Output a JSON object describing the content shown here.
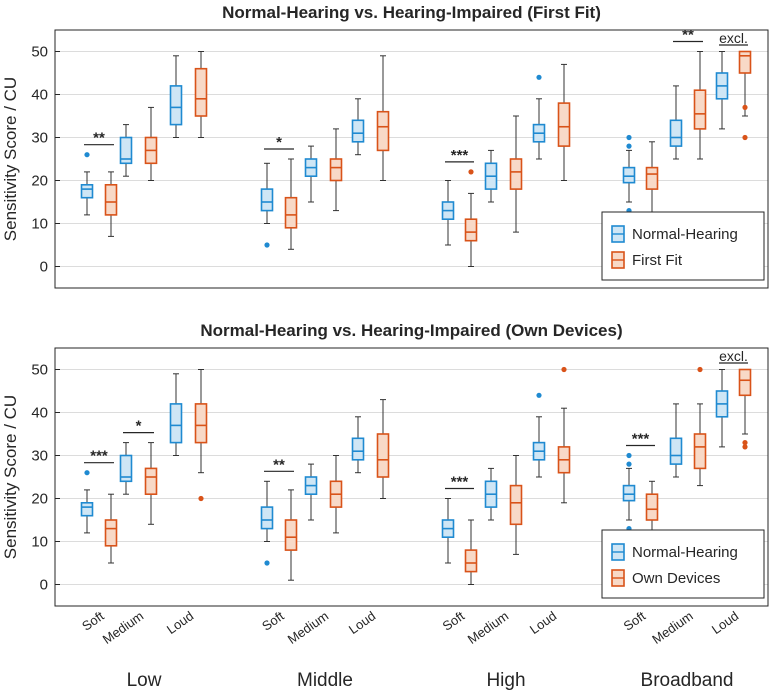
{
  "colors": {
    "nh_stroke": "#1f8ad1",
    "nh_fill": "#cfe6f5",
    "hi_stroke": "#d95319",
    "hi_fill": "#f8d9c7",
    "whisker": "#333333",
    "grid": "#dcdcdc",
    "frame": "#262626"
  },
  "chart_data": [
    {
      "type": "box",
      "title": "Normal-Hearing vs. Hearing-Impaired (First Fit)",
      "ylabel": "Sensitivity Score / CU",
      "ylim": [
        -5,
        55
      ],
      "yticks": [
        0,
        10,
        20,
        30,
        40,
        50
      ],
      "grid": true,
      "legend": {
        "placement": "bottom-right",
        "entries": [
          "Normal-Hearing",
          "First Fit"
        ]
      },
      "bands": [
        "Low",
        "Middle",
        "High",
        "Broadband"
      ],
      "levels": [
        "Soft",
        "Medium",
        "Loud"
      ],
      "series": [
        {
          "name": "Normal-Hearing",
          "boxes": [
            {
              "band": "Low",
              "level": "Soft",
              "min": 12,
              "q1": 16,
              "median": 18,
              "q3": 19,
              "max": 22,
              "outliers": [
                26
              ]
            },
            {
              "band": "Low",
              "level": "Medium",
              "min": 21,
              "q1": 24,
              "median": 25,
              "q3": 30,
              "max": 33,
              "outliers": []
            },
            {
              "band": "Low",
              "level": "Loud",
              "min": 30,
              "q1": 33,
              "median": 37,
              "q3": 42,
              "max": 49,
              "outliers": []
            },
            {
              "band": "Middle",
              "level": "Soft",
              "min": 10,
              "q1": 13,
              "median": 15,
              "q3": 18,
              "max": 24,
              "outliers": [
                5
              ]
            },
            {
              "band": "Middle",
              "level": "Medium",
              "min": 15,
              "q1": 21,
              "median": 23,
              "q3": 25,
              "max": 28,
              "outliers": []
            },
            {
              "band": "Middle",
              "level": "Loud",
              "min": 26,
              "q1": 29,
              "median": 31,
              "q3": 34,
              "max": 39,
              "outliers": []
            },
            {
              "band": "High",
              "level": "Soft",
              "min": 5,
              "q1": 11,
              "median": 13,
              "q3": 15,
              "max": 20,
              "outliers": []
            },
            {
              "band": "High",
              "level": "Medium",
              "min": 15,
              "q1": 18,
              "median": 21,
              "q3": 24,
              "max": 27,
              "outliers": []
            },
            {
              "band": "High",
              "level": "Loud",
              "min": 25,
              "q1": 29,
              "median": 31,
              "q3": 33,
              "max": 39,
              "outliers": [
                44
              ]
            },
            {
              "band": "Broadband",
              "level": "Soft",
              "min": 15,
              "q1": 19.5,
              "median": 21,
              "q3": 23,
              "max": 27,
              "outliers": [
                13,
                28,
                30
              ]
            },
            {
              "band": "Broadband",
              "level": "Medium",
              "min": 25,
              "q1": 28,
              "median": 30,
              "q3": 34,
              "max": 42,
              "outliers": []
            },
            {
              "band": "Broadband",
              "level": "Loud",
              "min": 32,
              "q1": 39,
              "median": 42,
              "q3": 45,
              "max": 50,
              "outliers": []
            }
          ]
        },
        {
          "name": "First Fit",
          "boxes": [
            {
              "band": "Low",
              "level": "Soft",
              "min": 7,
              "q1": 12,
              "median": 15,
              "q3": 19,
              "max": 22,
              "outliers": []
            },
            {
              "band": "Low",
              "level": "Medium",
              "min": 20,
              "q1": 24,
              "median": 27,
              "q3": 30,
              "max": 37,
              "outliers": []
            },
            {
              "band": "Low",
              "level": "Loud",
              "min": 30,
              "q1": 35,
              "median": 39,
              "q3": 46,
              "max": 50,
              "outliers": []
            },
            {
              "band": "Middle",
              "level": "Soft",
              "min": 4,
              "q1": 9,
              "median": 12,
              "q3": 16,
              "max": 25,
              "outliers": []
            },
            {
              "band": "Middle",
              "level": "Medium",
              "min": 13,
              "q1": 20,
              "median": 23,
              "q3": 25,
              "max": 32,
              "outliers": []
            },
            {
              "band": "Middle",
              "level": "Loud",
              "min": 20,
              "q1": 27,
              "median": 32.5,
              "q3": 36,
              "max": 49,
              "outliers": []
            },
            {
              "band": "High",
              "level": "Soft",
              "min": 0,
              "q1": 6,
              "median": 8,
              "q3": 11,
              "max": 17,
              "outliers": [
                22
              ]
            },
            {
              "band": "High",
              "level": "Medium",
              "min": 8,
              "q1": 18,
              "median": 22,
              "q3": 25,
              "max": 35,
              "outliers": []
            },
            {
              "band": "High",
              "level": "Loud",
              "min": 20,
              "q1": 28,
              "median": 32.5,
              "q3": 38,
              "max": 47,
              "outliers": []
            },
            {
              "band": "Broadband",
              "level": "Soft",
              "min": 12,
              "q1": 18,
              "median": 21.5,
              "q3": 23,
              "max": 29,
              "outliers": []
            },
            {
              "band": "Broadband",
              "level": "Medium",
              "min": 25,
              "q1": 32,
              "median": 35.5,
              "q3": 41,
              "max": 50,
              "outliers": []
            },
            {
              "band": "Broadband",
              "level": "Loud",
              "min": 35,
              "q1": 45,
              "median": 49,
              "q3": 50,
              "max": 50,
              "outliers": [
                30,
                37
              ]
            }
          ]
        }
      ],
      "annotations": [
        {
          "band": "Low",
          "level": "Soft",
          "label": "**"
        },
        {
          "band": "Middle",
          "level": "Soft",
          "label": "*"
        },
        {
          "band": "High",
          "level": "Soft",
          "label": "***"
        },
        {
          "band": "Broadband",
          "level": "Medium",
          "label": "**"
        },
        {
          "band": "Broadband",
          "level": "Loud",
          "label": "excl."
        }
      ]
    },
    {
      "type": "box",
      "title": "Normal-Hearing vs. Hearing-Impaired (Own Devices)",
      "ylabel": "Sensitivity Score / CU",
      "ylim": [
        -5,
        55
      ],
      "yticks": [
        0,
        10,
        20,
        30,
        40,
        50
      ],
      "grid": true,
      "legend": {
        "placement": "bottom-right",
        "entries": [
          "Normal-Hearing",
          "Own Devices"
        ]
      },
      "bands": [
        "Low",
        "Middle",
        "High",
        "Broadband"
      ],
      "levels": [
        "Soft",
        "Medium",
        "Loud"
      ],
      "series": [
        {
          "name": "Normal-Hearing",
          "boxes": [
            {
              "band": "Low",
              "level": "Soft",
              "min": 12,
              "q1": 16,
              "median": 18,
              "q3": 19,
              "max": 22,
              "outliers": [
                26
              ]
            },
            {
              "band": "Low",
              "level": "Medium",
              "min": 21,
              "q1": 24,
              "median": 25,
              "q3": 30,
              "max": 33,
              "outliers": []
            },
            {
              "band": "Low",
              "level": "Loud",
              "min": 30,
              "q1": 33,
              "median": 37,
              "q3": 42,
              "max": 49,
              "outliers": []
            },
            {
              "band": "Middle",
              "level": "Soft",
              "min": 10,
              "q1": 13,
              "median": 15,
              "q3": 18,
              "max": 24,
              "outliers": [
                5
              ]
            },
            {
              "band": "Middle",
              "level": "Medium",
              "min": 15,
              "q1": 21,
              "median": 23,
              "q3": 25,
              "max": 28,
              "outliers": []
            },
            {
              "band": "Middle",
              "level": "Loud",
              "min": 26,
              "q1": 29,
              "median": 31,
              "q3": 34,
              "max": 39,
              "outliers": []
            },
            {
              "band": "High",
              "level": "Soft",
              "min": 5,
              "q1": 11,
              "median": 13,
              "q3": 15,
              "max": 20,
              "outliers": []
            },
            {
              "band": "High",
              "level": "Medium",
              "min": 15,
              "q1": 18,
              "median": 21,
              "q3": 24,
              "max": 27,
              "outliers": []
            },
            {
              "band": "High",
              "level": "Loud",
              "min": 25,
              "q1": 29,
              "median": 31,
              "q3": 33,
              "max": 39,
              "outliers": [
                44
              ]
            },
            {
              "band": "Broadband",
              "level": "Soft",
              "min": 15,
              "q1": 19.5,
              "median": 21,
              "q3": 23,
              "max": 27,
              "outliers": [
                13,
                28,
                30
              ]
            },
            {
              "band": "Broadband",
              "level": "Medium",
              "min": 25,
              "q1": 28,
              "median": 30,
              "q3": 34,
              "max": 42,
              "outliers": []
            },
            {
              "band": "Broadband",
              "level": "Loud",
              "min": 32,
              "q1": 39,
              "median": 42,
              "q3": 45,
              "max": 50,
              "outliers": []
            }
          ]
        },
        {
          "name": "Own Devices",
          "boxes": [
            {
              "band": "Low",
              "level": "Soft",
              "min": 5,
              "q1": 9,
              "median": 13,
              "q3": 15,
              "max": 21,
              "outliers": []
            },
            {
              "band": "Low",
              "level": "Medium",
              "min": 14,
              "q1": 21,
              "median": 25,
              "q3": 27,
              "max": 33,
              "outliers": []
            },
            {
              "band": "Low",
              "level": "Loud",
              "min": 26,
              "q1": 33,
              "median": 37,
              "q3": 42,
              "max": 50,
              "outliers": [
                20
              ]
            },
            {
              "band": "Middle",
              "level": "Soft",
              "min": 1,
              "q1": 8,
              "median": 11,
              "q3": 15,
              "max": 22,
              "outliers": []
            },
            {
              "band": "Middle",
              "level": "Medium",
              "min": 12,
              "q1": 18,
              "median": 21,
              "q3": 24,
              "max": 30,
              "outliers": []
            },
            {
              "band": "Middle",
              "level": "Loud",
              "min": 20,
              "q1": 25,
              "median": 29,
              "q3": 35,
              "max": 43,
              "outliers": []
            },
            {
              "band": "High",
              "level": "Soft",
              "min": 0,
              "q1": 3,
              "median": 5,
              "q3": 8,
              "max": 15,
              "outliers": []
            },
            {
              "band": "High",
              "level": "Medium",
              "min": 7,
              "q1": 14,
              "median": 19,
              "q3": 23,
              "max": 30,
              "outliers": []
            },
            {
              "band": "High",
              "level": "Loud",
              "min": 19,
              "q1": 26,
              "median": 29,
              "q3": 32,
              "max": 41,
              "outliers": [
                50
              ]
            },
            {
              "band": "Broadband",
              "level": "Soft",
              "min": 10,
              "q1": 15,
              "median": 17.5,
              "q3": 21,
              "max": 24,
              "outliers": []
            },
            {
              "band": "Broadband",
              "level": "Medium",
              "min": 23,
              "q1": 27,
              "median": 32,
              "q3": 35,
              "max": 42,
              "outliers": [
                50
              ]
            },
            {
              "band": "Broadband",
              "level": "Loud",
              "min": 35,
              "q1": 44,
              "median": 47.5,
              "q3": 50,
              "max": 50,
              "outliers": [
                32,
                33
              ]
            }
          ]
        }
      ],
      "annotations": [
        {
          "band": "Low",
          "level": "Soft",
          "label": "***"
        },
        {
          "band": "Low",
          "level": "Medium",
          "label": "*"
        },
        {
          "band": "Middle",
          "level": "Soft",
          "label": "**"
        },
        {
          "band": "High",
          "level": "Soft",
          "label": "***"
        },
        {
          "band": "Broadband",
          "level": "Soft",
          "label": "***"
        },
        {
          "band": "Broadband",
          "level": "Loud",
          "label": "excl."
        }
      ]
    }
  ]
}
